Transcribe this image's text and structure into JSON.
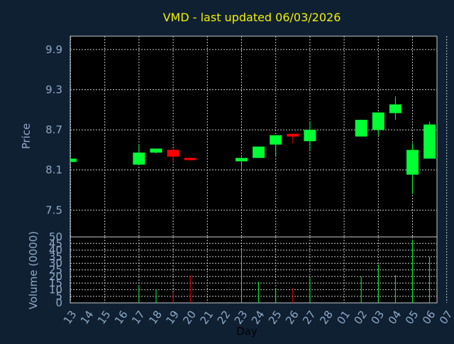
{
  "chart_data": {
    "type": "candlestick",
    "title": "VMD - last updated 06/03/2026",
    "xlabel": "Day",
    "price_panel": {
      "ylabel": "Price",
      "yticks": [
        "9.9",
        "9.3",
        "8.7",
        "8.1",
        "7.5"
      ],
      "ylim": [
        7.1,
        10.1
      ]
    },
    "volume_panel": {
      "ylabel": "Volume (0000)",
      "yticks": [
        "50",
        "45",
        "40",
        "35",
        "30",
        "25",
        "20",
        "15",
        "10",
        "5",
        "0"
      ],
      "ylim": [
        0,
        50
      ]
    },
    "x_labels": [
      "13",
      "14",
      "15",
      "16",
      "17",
      "18",
      "19",
      "20",
      "21",
      "22",
      "23",
      "24",
      "25",
      "26",
      "27",
      "28",
      "01",
      "02",
      "03",
      "04",
      "05",
      "06",
      "07"
    ],
    "grid": true,
    "up_color": "#00ff33",
    "down_color": "#ff0000",
    "candles": [
      {
        "day": "13",
        "open": 8.22,
        "high": 8.27,
        "low": 8.22,
        "close": 8.27,
        "volume": 0
      },
      {
        "day": "17",
        "open": 8.18,
        "high": 8.48,
        "low": 8.18,
        "close": 8.36,
        "volume": 13
      },
      {
        "day": "18",
        "open": 8.36,
        "high": 8.42,
        "low": 8.35,
        "close": 8.42,
        "volume": 10
      },
      {
        "day": "19",
        "open": 8.4,
        "high": 8.42,
        "low": 8.22,
        "close": 8.3,
        "volume": 8
      },
      {
        "day": "20",
        "open": 8.28,
        "high": 8.28,
        "low": 8.24,
        "close": 8.25,
        "volume": 21
      },
      {
        "day": "23",
        "open": 8.23,
        "high": 8.29,
        "low": 8.1,
        "close": 8.28,
        "volume": 38
      },
      {
        "day": "24",
        "open": 8.28,
        "high": 8.45,
        "low": 8.28,
        "close": 8.45,
        "volume": 16
      },
      {
        "day": "25",
        "open": 8.48,
        "high": 8.62,
        "low": 8.3,
        "close": 8.62,
        "volume": 11
      },
      {
        "day": "26",
        "open": 8.64,
        "high": 8.64,
        "low": 8.5,
        "close": 8.6,
        "volume": 11
      },
      {
        "day": "27",
        "open": 8.53,
        "high": 8.82,
        "low": 8.4,
        "close": 8.7,
        "volume": 19
      },
      {
        "day": "02",
        "open": 8.6,
        "high": 8.85,
        "low": 8.6,
        "close": 8.85,
        "volume": 20
      },
      {
        "day": "03",
        "open": 8.7,
        "high": 8.96,
        "low": 8.6,
        "close": 8.96,
        "volume": 29
      },
      {
        "day": "04",
        "open": 8.95,
        "high": 9.2,
        "low": 8.85,
        "close": 9.08,
        "volume": 21
      },
      {
        "day": "05",
        "open": 8.03,
        "high": 8.5,
        "low": 7.74,
        "close": 8.4,
        "volume": 48
      },
      {
        "day": "06",
        "open": 8.27,
        "high": 8.82,
        "low": 8.27,
        "close": 8.78,
        "volume": 35
      }
    ]
  }
}
